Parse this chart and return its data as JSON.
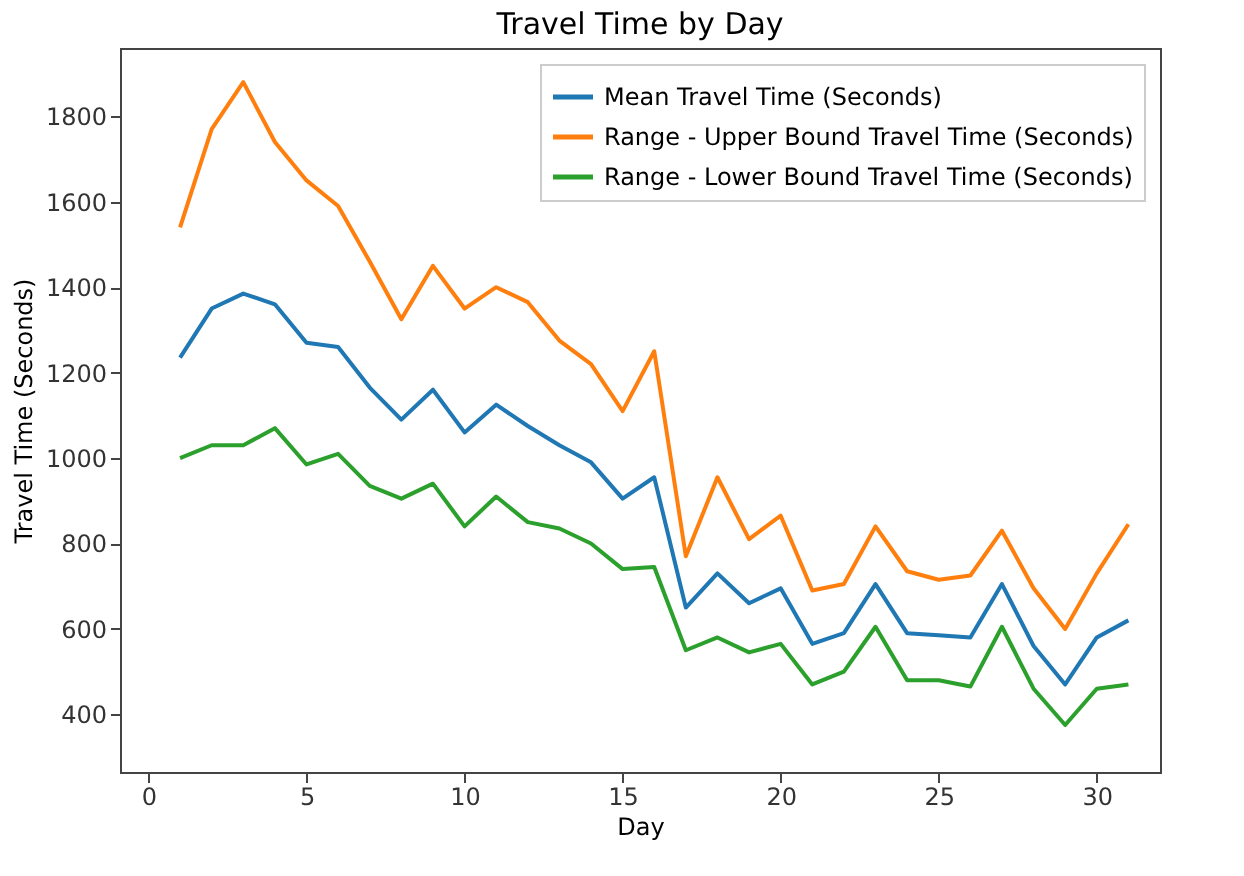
{
  "chart_data": {
    "type": "line",
    "title": "Travel Time by Day",
    "xlabel": "Day",
    "ylabel": "Travel Time (Seconds)",
    "x": [
      1,
      2,
      3,
      4,
      5,
      6,
      7,
      8,
      9,
      10,
      11,
      12,
      13,
      14,
      15,
      16,
      17,
      18,
      19,
      20,
      21,
      22,
      23,
      24,
      25,
      26,
      27,
      28,
      29,
      30,
      31
    ],
    "series": [
      {
        "name": "Mean Travel Time (Seconds)",
        "color": "#1f77b4",
        "values": [
          1235,
          1350,
          1385,
          1360,
          1270,
          1260,
          1165,
          1090,
          1160,
          1060,
          1125,
          1075,
          1030,
          990,
          905,
          955,
          650,
          730,
          660,
          695,
          565,
          590,
          705,
          590,
          585,
          580,
          705,
          560,
          470,
          580,
          620
        ]
      },
      {
        "name": "Range - Upper Bound Travel Time (Seconds)",
        "color": "#ff7f0e",
        "values": [
          1540,
          1770,
          1880,
          1740,
          1650,
          1590,
          1460,
          1325,
          1450,
          1350,
          1400,
          1365,
          1275,
          1220,
          1110,
          1250,
          770,
          955,
          810,
          865,
          690,
          705,
          840,
          735,
          715,
          725,
          830,
          695,
          600,
          730,
          845
        ]
      },
      {
        "name": "Range - Lower Bound Travel Time (Seconds)",
        "color": "#2ca02c",
        "values": [
          1000,
          1030,
          1030,
          1070,
          985,
          1010,
          935,
          905,
          940,
          840,
          910,
          850,
          835,
          800,
          740,
          745,
          550,
          580,
          545,
          565,
          470,
          500,
          605,
          480,
          480,
          465,
          605,
          460,
          375,
          460,
          470
        ]
      }
    ],
    "xlim": [
      -0.9,
      32
    ],
    "ylim": [
      265,
      1960
    ],
    "xticks": [
      0,
      5,
      10,
      15,
      20,
      25,
      30
    ],
    "yticks": [
      400,
      600,
      800,
      1000,
      1200,
      1400,
      1600,
      1800
    ],
    "legend": "top right",
    "grid": false,
    "marker": "none",
    "line_style": "solid"
  }
}
